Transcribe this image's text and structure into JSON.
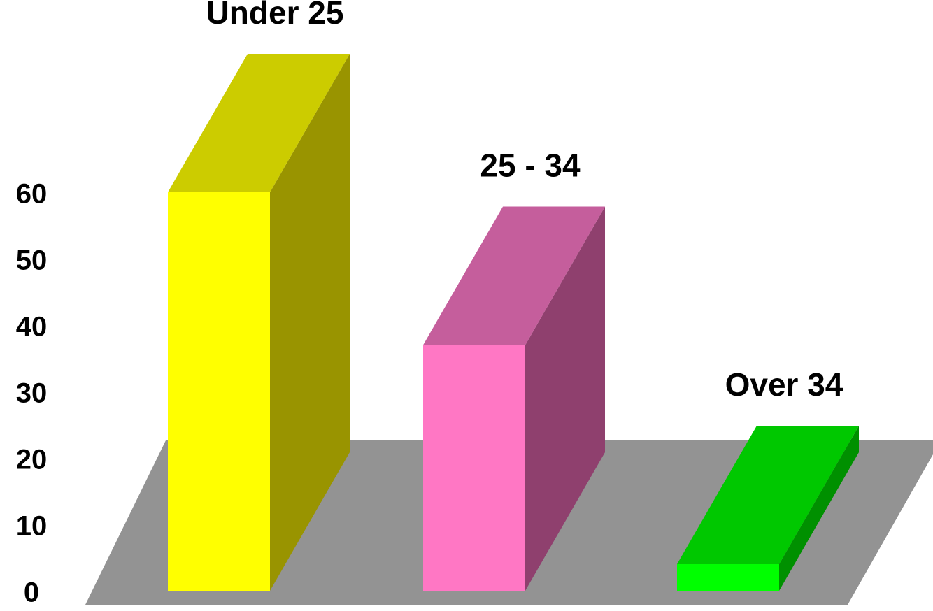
{
  "chart_data": {
    "type": "bar3d",
    "categories": [
      "Under 25",
      "25 - 34",
      "Over 34"
    ],
    "values": [
      60,
      37,
      4
    ],
    "colors": [
      "#ffff00",
      "#ff77c4",
      "#00ff00"
    ],
    "top_colors": [
      "#cccc00",
      "#c55e9c",
      "#00c800"
    ],
    "side_colors": [
      "#999400",
      "#8f406e",
      "#009000"
    ],
    "floor_color": "#939393",
    "ylim": [
      0,
      60
    ],
    "yticks": [
      0,
      10,
      20,
      30,
      40,
      50,
      60
    ],
    "grid": false
  }
}
